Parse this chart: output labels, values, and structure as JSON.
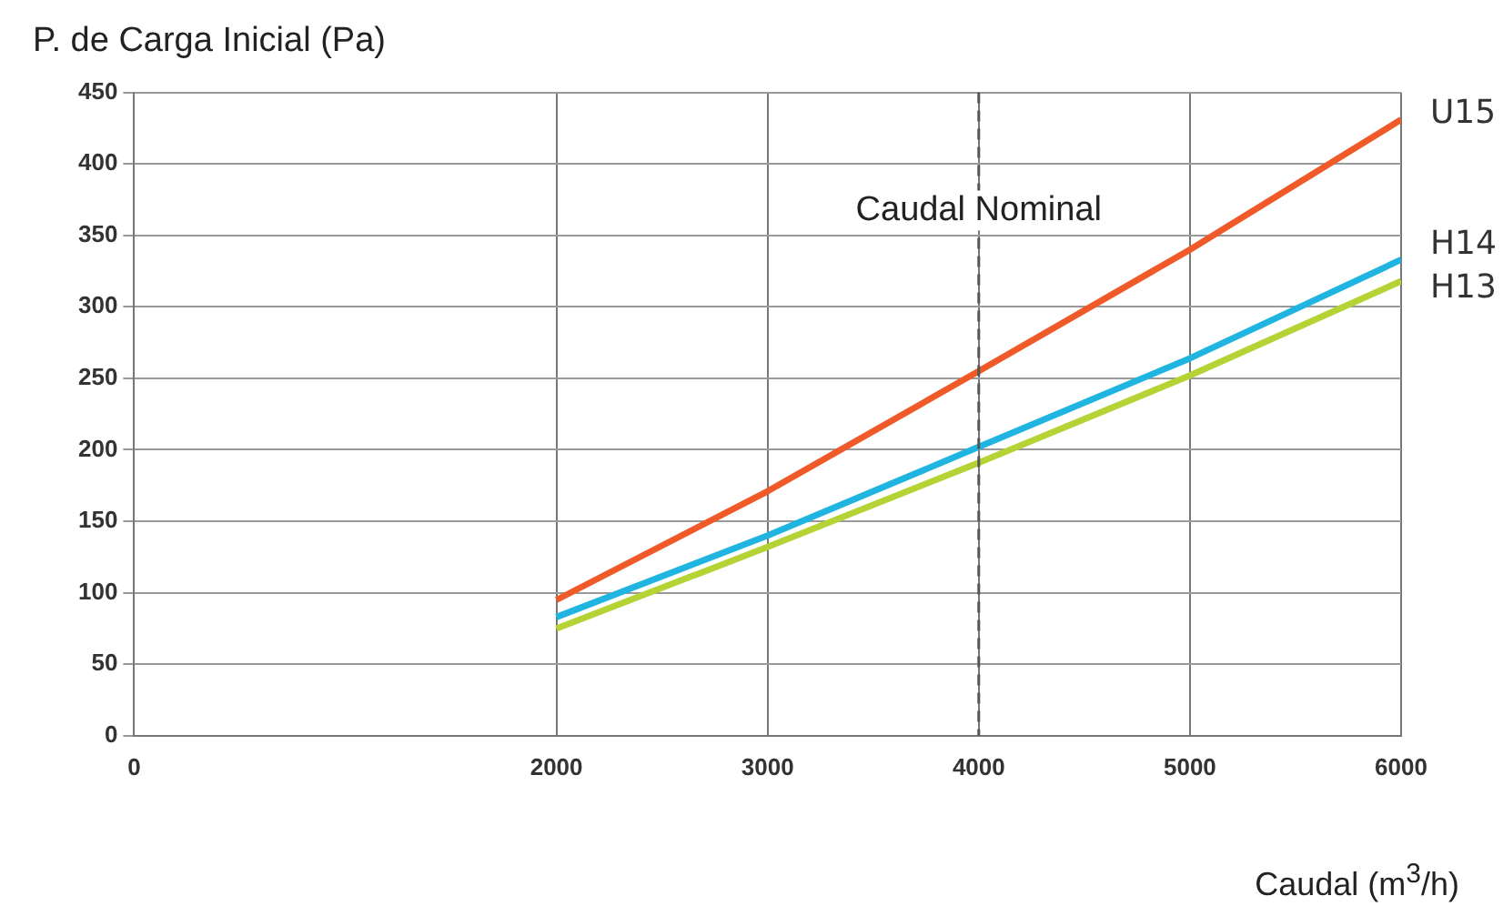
{
  "chart_data": {
    "type": "line",
    "ylabel": "P. de Carga Inicial (Pa)",
    "xlabel": "Caudal (m$^{3}$/h)",
    "x": [
      2000,
      3000,
      4000,
      5000,
      6000
    ],
    "series": [
      {
        "name": "U15",
        "color": "#f05a28",
        "values": [
          95,
          171,
          255,
          340,
          431
        ]
      },
      {
        "name": "H14",
        "color": "#1fb5e0",
        "values": [
          83,
          140,
          202,
          264,
          333
        ]
      },
      {
        "name": "H13",
        "color": "#b5d334",
        "values": [
          75,
          132,
          191,
          252,
          318
        ]
      }
    ],
    "xlim": [
      0,
      6000
    ],
    "xticks": [
      0,
      2000,
      3000,
      4000,
      5000,
      6000
    ],
    "ylim": [
      0,
      450
    ],
    "yticks": [
      0,
      50,
      100,
      150,
      200,
      250,
      300,
      350,
      400,
      450
    ],
    "grid": true,
    "legend": false,
    "marker": "none",
    "line_style": "solid",
    "ref_lines": [
      {
        "axis": "x",
        "value": 4000,
        "label": "Caudal Nominal",
        "color": "#555555",
        "line_style": "dashed"
      }
    ]
  }
}
